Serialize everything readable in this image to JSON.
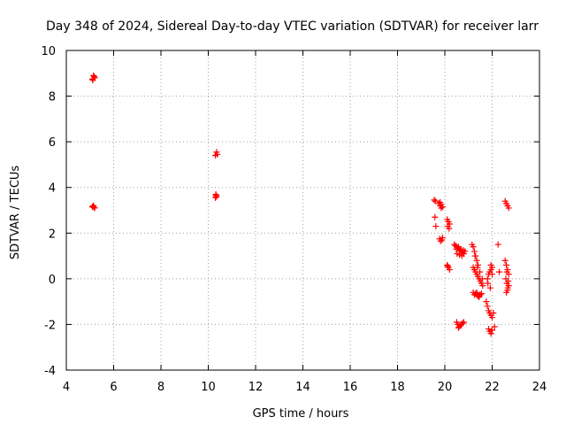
{
  "chart_data": {
    "type": "scatter",
    "title": "Day 348 of 2024, Sidereal Day-to-day VTEC variation (SDTVAR) for receiver larr",
    "xlabel": "GPS time / hours",
    "ylabel": "SDTVAR / TECUs",
    "xlim": [
      4,
      24
    ],
    "ylim": [
      -4,
      10
    ],
    "xticks": [
      4,
      6,
      8,
      10,
      12,
      14,
      16,
      18,
      20,
      22,
      24
    ],
    "yticks": [
      -4,
      -2,
      0,
      2,
      4,
      6,
      8,
      10
    ],
    "grid": true,
    "marker": "+",
    "color": "#ff0000",
    "series": [
      {
        "name": "SDTVAR",
        "x": [
          5.1,
          5.15,
          5.2,
          5.12,
          5.18,
          5.1,
          5.15,
          5.2,
          5.13,
          5.17,
          10.3,
          10.35,
          10.38,
          10.32,
          10.3,
          10.35,
          10.33,
          19.55,
          19.6,
          19.58,
          19.62,
          19.75,
          19.8,
          19.85,
          19.9,
          19.78,
          19.88,
          19.82,
          19.8,
          19.85,
          19.9,
          20.1,
          20.15,
          20.2,
          20.12,
          20.18,
          20.1,
          20.15,
          20.2,
          20.12,
          20.4,
          20.45,
          20.5,
          20.55,
          20.6,
          20.65,
          20.7,
          20.75,
          20.8,
          20.85,
          20.48,
          20.58,
          20.68,
          20.78,
          20.52,
          20.62,
          20.72,
          20.5,
          20.55,
          20.6,
          20.65,
          20.7,
          20.75,
          20.8,
          20.58,
          20.68,
          21.15,
          21.2,
          21.25,
          21.3,
          21.35,
          21.4,
          21.2,
          21.25,
          21.3,
          21.35,
          21.4,
          21.45,
          21.5,
          21.55,
          21.6,
          21.28,
          21.38,
          21.48,
          21.58,
          21.2,
          21.25,
          21.3,
          21.35,
          21.4,
          21.45,
          21.5,
          21.55,
          21.35,
          21.45,
          21.75,
          21.8,
          21.85,
          21.9,
          21.95,
          22.0,
          22.05,
          21.8,
          21.85,
          21.9,
          21.95,
          22.0,
          21.82,
          21.92,
          21.85,
          21.9,
          21.95,
          22.0,
          21.95,
          22.0,
          22.25,
          22.3,
          22.1,
          22.55,
          22.6,
          22.65,
          22.7,
          22.55,
          22.6,
          22.65,
          22.7,
          22.58,
          22.62,
          22.66,
          22.6,
          22.65,
          22.7,
          22.62,
          22.68
        ]
      }
    ],
    "points_y": [
      8.75,
      8.9,
      8.8,
      8.7,
      8.85,
      3.15,
      3.2,
      3.1,
      3.18,
      3.12,
      5.4,
      5.55,
      5.45,
      3.7,
      3.55,
      3.6,
      3.65,
      3.45,
      3.4,
      2.7,
      2.3,
      3.3,
      3.2,
      3.25,
      3.15,
      1.75,
      1.7,
      1.65,
      3.35,
      3.1,
      1.8,
      2.6,
      2.5,
      2.4,
      2.3,
      2.2,
      0.6,
      0.5,
      0.4,
      0.55,
      1.5,
      1.45,
      1.4,
      1.35,
      1.3,
      1.25,
      1.2,
      1.15,
      1.1,
      1.2,
      1.3,
      1.4,
      1.3,
      1.25,
      1.1,
      1.05,
      1.0,
      -1.9,
      -2.0,
      -2.1,
      -2.05,
      -2.0,
      -1.95,
      -1.9,
      -2.15,
      -2.0,
      1.5,
      1.4,
      1.2,
      1.0,
      0.8,
      0.6,
      0.5,
      0.4,
      0.3,
      0.2,
      0.1,
      0.0,
      -0.1,
      -0.2,
      -0.3,
      1.0,
      0.5,
      0.3,
      0.0,
      -0.6,
      -0.7,
      -0.65,
      -0.7,
      -0.75,
      -0.8,
      -0.7,
      -0.65,
      -0.6,
      -0.75,
      -1.0,
      -1.2,
      -1.4,
      -1.5,
      -1.6,
      -1.7,
      -1.5,
      0.0,
      0.2,
      0.3,
      0.4,
      0.5,
      -0.2,
      -0.4,
      -2.2,
      -2.3,
      -2.4,
      -2.25,
      0.6,
      0.2,
      1.5,
      0.3,
      -2.1,
      3.4,
      3.3,
      3.2,
      3.1,
      0.8,
      0.6,
      0.4,
      0.2,
      0.0,
      -0.2,
      -0.4,
      -0.6,
      -0.5,
      -0.3,
      0.3,
      -0.1
    ]
  }
}
